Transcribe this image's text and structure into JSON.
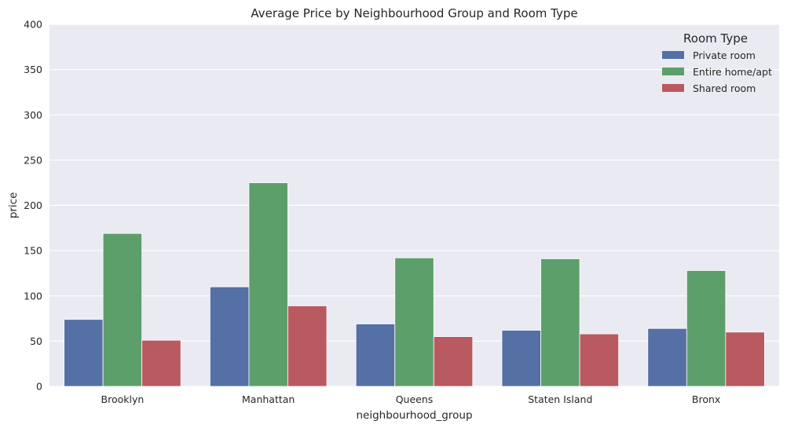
{
  "chart_data": {
    "type": "bar",
    "title": "Average Price by Neighbourhood Group and Room Type",
    "xlabel": "neighbourhood_group",
    "ylabel": "price",
    "ylim": [
      0,
      400
    ],
    "yticks": [
      0,
      50,
      100,
      150,
      200,
      250,
      300,
      350,
      400
    ],
    "grid": true,
    "categories": [
      "Brooklyn",
      "Manhattan",
      "Queens",
      "Staten Island",
      "Bronx"
    ],
    "legend": {
      "title": "Room Type",
      "placement": "top-right"
    },
    "series": [
      {
        "name": "Private room",
        "color": "#5470a5",
        "values": [
          74,
          110,
          69,
          62,
          64
        ]
      },
      {
        "name": "Entire home/apt",
        "color": "#5d9f6b",
        "values": [
          169,
          225,
          142,
          141,
          128
        ]
      },
      {
        "name": "Shared room",
        "color": "#b85a5f",
        "values": [
          51,
          89,
          55,
          58,
          60
        ]
      }
    ],
    "plot_background": "#eaeaf2",
    "grid_color": "#ffffff"
  }
}
